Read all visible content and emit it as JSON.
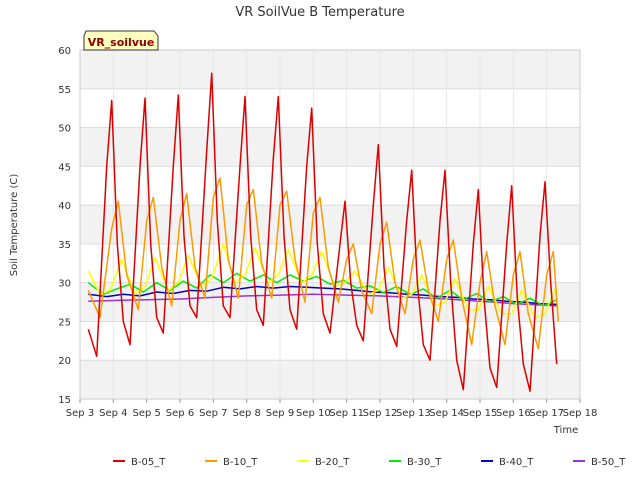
{
  "chart_data": {
    "type": "line",
    "title": "VR SoilVue B Temperature",
    "site_label": "VR_soilvue",
    "xlabel": "Time",
    "ylabel": "Soil Temperature (C)",
    "ylim": [
      15,
      60
    ],
    "y_ticks": [
      15,
      20,
      25,
      30,
      35,
      40,
      45,
      50,
      55,
      60
    ],
    "xlim": [
      3,
      18
    ],
    "x_ticks": [
      3,
      4,
      5,
      6,
      7,
      8,
      9,
      10,
      11,
      12,
      13,
      14,
      15,
      16,
      17,
      18
    ],
    "x_tick_labels": [
      "Sep 3",
      "Sep 4",
      "Sep 5",
      "Sep 6",
      "Sep 7",
      "Sep 8",
      "Sep 9",
      "Sep 10",
      "Sep 11",
      "Sep 12",
      "Sep 13",
      "Sep 14",
      "Sep 15",
      "Sep 16",
      "Sep 17",
      "Sep 18"
    ],
    "grid": true,
    "legend_position": "bottom",
    "series": [
      {
        "name": "B-05_T",
        "color": "#dd0000",
        "x": [
          3.25,
          3.5,
          3.8,
          3.95,
          4.12,
          4.3,
          4.5,
          4.8,
          4.95,
          5.12,
          5.3,
          5.5,
          5.8,
          5.95,
          6.12,
          6.3,
          6.5,
          6.8,
          6.95,
          7.12,
          7.3,
          7.5,
          7.8,
          7.95,
          8.12,
          8.3,
          8.5,
          8.8,
          8.95,
          9.12,
          9.3,
          9.5,
          9.8,
          9.95,
          10.12,
          10.3,
          10.5,
          10.8,
          10.95,
          11.12,
          11.3,
          11.5,
          11.8,
          11.95,
          12.12,
          12.3,
          12.5,
          12.8,
          12.95,
          13.12,
          13.3,
          13.5,
          13.8,
          13.95,
          14.12,
          14.3,
          14.5,
          14.8,
          14.95,
          15.12,
          15.3,
          15.5,
          15.8,
          15.95,
          16.12,
          16.3,
          16.5,
          16.8,
          16.95,
          17.12,
          17.3
        ],
        "y": [
          24,
          20.5,
          45,
          53.5,
          35,
          25,
          22,
          45,
          53.8,
          35,
          25.5,
          23.5,
          45,
          54.2,
          36,
          27,
          25.5,
          47,
          57,
          38,
          27,
          25.5,
          45,
          54,
          36,
          26.5,
          24.5,
          46,
          54,
          36,
          26.5,
          24,
          45,
          52.5,
          35,
          26,
          23.5,
          35,
          40.5,
          30,
          24.5,
          22.5,
          40,
          47.8,
          32,
          24,
          21.8,
          38,
          44.5,
          30,
          22,
          20,
          38,
          44.5,
          30,
          20,
          16.2,
          35,
          42,
          28,
          19,
          16.5,
          35,
          42.5,
          28,
          19.5,
          16,
          36,
          43,
          30,
          19.5
        ]
      },
      {
        "name": "B-10_T",
        "color": "#ff9900",
        "x": [
          3.25,
          3.6,
          3.95,
          4.15,
          4.4,
          4.75,
          5.0,
          5.2,
          5.45,
          5.75,
          6.0,
          6.2,
          6.45,
          6.75,
          7.0,
          7.2,
          7.45,
          7.75,
          8.0,
          8.2,
          8.45,
          8.75,
          9.0,
          9.2,
          9.45,
          9.75,
          10.0,
          10.2,
          10.45,
          10.75,
          11.0,
          11.2,
          11.45,
          11.75,
          12.0,
          12.2,
          12.45,
          12.75,
          13.0,
          13.2,
          13.45,
          13.75,
          14.0,
          14.2,
          14.45,
          14.75,
          15.0,
          15.2,
          15.45,
          15.75,
          16.0,
          16.2,
          16.45,
          16.75,
          17.0,
          17.2,
          17.35
        ],
        "y": [
          29,
          25.5,
          37,
          40.5,
          31,
          26.5,
          38,
          41,
          32,
          27,
          38,
          41.5,
          32,
          28,
          41,
          43.5,
          33,
          28,
          40,
          42,
          32.5,
          28,
          40,
          41.8,
          33,
          27.5,
          39,
          41,
          32,
          27.5,
          33,
          35,
          29,
          26,
          35,
          37.8,
          30,
          26,
          33,
          35.5,
          29,
          25,
          33,
          35.5,
          28,
          22,
          30,
          34,
          27,
          22,
          31,
          34,
          26,
          21.5,
          31,
          34,
          25
        ]
      },
      {
        "name": "B-20_T",
        "color": "#ffff00",
        "x": [
          3.25,
          3.6,
          3.9,
          4.25,
          4.65,
          4.95,
          5.25,
          5.65,
          5.95,
          6.25,
          6.65,
          6.95,
          7.3,
          7.65,
          7.95,
          8.25,
          8.65,
          8.95,
          9.25,
          9.65,
          9.95,
          10.25,
          10.65,
          10.95,
          11.25,
          11.65,
          11.95,
          12.25,
          12.65,
          12.95,
          13.25,
          13.65,
          13.95,
          14.25,
          14.65,
          14.95,
          15.25,
          15.65,
          15.95,
          16.25,
          16.65,
          16.95,
          17.25,
          17.35
        ],
        "y": [
          31.5,
          28.5,
          29,
          33,
          28.5,
          29.5,
          33.2,
          29,
          30,
          33.5,
          29.5,
          30.5,
          35,
          30,
          31,
          34.5,
          30,
          31,
          34.3,
          30,
          31,
          34,
          29.5,
          30,
          31.5,
          28.5,
          29,
          32,
          28,
          28.5,
          31,
          27,
          27.5,
          30.5,
          26.5,
          26.5,
          29.5,
          26,
          26,
          29,
          25.5,
          26,
          29.2,
          26.5
        ]
      },
      {
        "name": "B-30_T",
        "color": "#00ee00",
        "x": [
          3.25,
          3.7,
          4.1,
          4.5,
          4.9,
          5.3,
          5.7,
          6.1,
          6.5,
          6.9,
          7.3,
          7.7,
          8.1,
          8.5,
          8.9,
          9.3,
          9.7,
          10.1,
          10.5,
          10.9,
          11.3,
          11.7,
          12.1,
          12.5,
          12.9,
          13.3,
          13.7,
          14.1,
          14.5,
          14.9,
          15.3,
          15.7,
          16.1,
          16.5,
          16.9,
          17.3
        ],
        "y": [
          30,
          28.5,
          29.2,
          29.8,
          28.8,
          30,
          29,
          30.2,
          29.3,
          31,
          30,
          31.2,
          30.2,
          31,
          30,
          31,
          30.2,
          30.8,
          29.8,
          30.3,
          29.3,
          29.6,
          28.7,
          29.5,
          28.5,
          29.2,
          28,
          29,
          27.8,
          28.6,
          27.5,
          28.2,
          27.2,
          28,
          27,
          27.8
        ]
      },
      {
        "name": "B-40_T",
        "color": "#0000bb",
        "x": [
          3.25,
          3.8,
          4.3,
          4.8,
          5.3,
          5.8,
          6.3,
          6.8,
          7.3,
          7.8,
          8.3,
          8.8,
          9.3,
          9.8,
          10.3,
          10.8,
          11.3,
          11.8,
          12.3,
          12.8,
          13.3,
          13.8,
          14.3,
          14.8,
          15.3,
          15.8,
          16.3,
          16.8,
          17.3
        ],
        "y": [
          28.5,
          28.2,
          28.5,
          28.3,
          28.8,
          28.6,
          29,
          28.9,
          29.4,
          29.2,
          29.5,
          29.3,
          29.5,
          29.4,
          29.3,
          29.2,
          29,
          28.8,
          28.7,
          28.5,
          28.4,
          28.2,
          28.1,
          27.9,
          27.8,
          27.6,
          27.5,
          27.3,
          27.2
        ]
      },
      {
        "name": "B-50_T",
        "color": "#9933cc",
        "x": [
          3.25,
          4.0,
          5.0,
          6.0,
          7.0,
          8.0,
          9.0,
          10.0,
          11.0,
          12.0,
          13.0,
          14.0,
          15.0,
          16.0,
          17.0,
          17.3
        ],
        "y": [
          27.6,
          27.7,
          27.8,
          27.9,
          28.1,
          28.3,
          28.4,
          28.5,
          28.4,
          28.3,
          28.1,
          27.9,
          27.6,
          27.3,
          27.1,
          27
        ]
      }
    ]
  }
}
